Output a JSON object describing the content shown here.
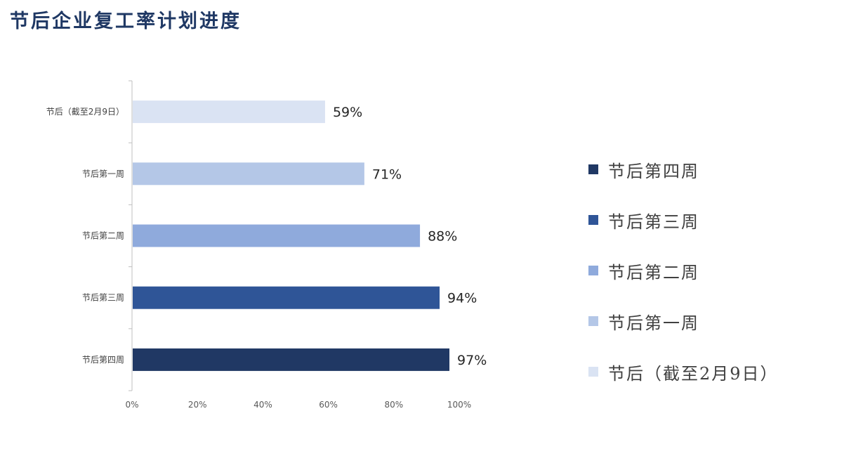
{
  "title": "节后企业复工率计划进度",
  "chart_data": {
    "type": "bar",
    "orientation": "horizontal",
    "categories": [
      "节后（截至2月9日）",
      "节后第一周",
      "节后第二周",
      "节后第三周",
      "节后第四周"
    ],
    "values": [
      59,
      71,
      88,
      94,
      97
    ],
    "data_labels": [
      "59%",
      "71%",
      "88%",
      "94%",
      "97%"
    ],
    "colors": [
      "#dae3f3",
      "#b4c7e7",
      "#8faadc",
      "#2f5597",
      "#203864"
    ],
    "xlim": [
      0,
      100
    ],
    "x_ticks": [
      "0%",
      "20%",
      "40%",
      "60%",
      "80%",
      "100%"
    ],
    "grid": false,
    "legend_position": "right",
    "legend": [
      {
        "label": "节后第四周",
        "color": "#203864"
      },
      {
        "label": "节后第三周",
        "color": "#2f5597"
      },
      {
        "label": "节后第二周",
        "color": "#8faadc"
      },
      {
        "label": "节后第一周",
        "color": "#b4c7e7"
      },
      {
        "label": "节后（截至2月9日）",
        "color": "#dae3f3"
      }
    ]
  }
}
